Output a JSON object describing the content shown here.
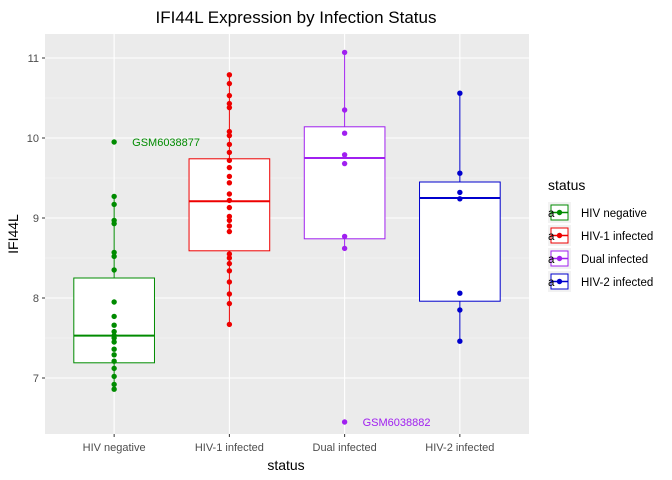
{
  "chart_data": {
    "type": "boxplot",
    "title": "IFI44L Expression by Infection Status",
    "xlabel": "status",
    "ylabel": "IFI44L",
    "ylim": [
      6.3,
      11.3
    ],
    "yticks": [
      7,
      8,
      9,
      10,
      11
    ],
    "categories": [
      "HIV negative",
      "HIV-1 infected",
      "Dual infected",
      "HIV-2 infected"
    ],
    "legend": {
      "title": "status",
      "position": "right",
      "glyph_text": "a"
    },
    "series": [
      {
        "name": "HIV negative",
        "color": "#008B00",
        "box": {
          "q1": 7.19,
          "median": 7.53,
          "q3": 8.25,
          "whisker_low": 6.84,
          "whisker_high": 9.27
        },
        "points": [
          9.95,
          9.27,
          9.17,
          8.97,
          8.93,
          8.57,
          8.52,
          8.35,
          7.95,
          7.77,
          7.66,
          7.58,
          7.53,
          7.5,
          7.45,
          7.36,
          7.29,
          7.21,
          7.12,
          7.02,
          6.92,
          6.86
        ]
      },
      {
        "name": "HIV-1 infected",
        "color": "#EE0000",
        "box": {
          "q1": 8.59,
          "median": 9.21,
          "q3": 9.74,
          "whisker_low": 7.67,
          "whisker_high": 10.79
        },
        "points": [
          10.79,
          10.68,
          10.53,
          10.43,
          10.38,
          10.08,
          10.03,
          9.92,
          9.82,
          9.72,
          9.63,
          9.52,
          9.44,
          9.3,
          9.22,
          9.13,
          9.02,
          8.97,
          8.9,
          8.83,
          8.55,
          8.5,
          8.43,
          8.34,
          8.2,
          8.05,
          7.93,
          7.67
        ]
      },
      {
        "name": "Dual infected",
        "color": "#A020F0",
        "box": {
          "q1": 8.74,
          "median": 9.75,
          "q3": 10.14,
          "whisker_low": 8.62,
          "whisker_high": 11.07
        },
        "points": [
          11.07,
          10.35,
          10.06,
          9.79,
          9.68,
          8.77,
          8.62,
          6.45
        ]
      },
      {
        "name": "HIV-2 infected",
        "color": "#0000CD",
        "box": {
          "q1": 7.96,
          "median": 9.25,
          "q3": 9.45,
          "whisker_low": 7.46,
          "whisker_high": 10.56
        },
        "points": [
          10.56,
          9.56,
          9.32,
          9.24,
          8.06,
          7.85,
          7.46
        ]
      }
    ],
    "annotations": [
      {
        "text": "GSM6038877",
        "category": "HIV negative",
        "y": 9.95,
        "color": "#008B00"
      },
      {
        "text": "GSM6038882",
        "category": "Dual infected",
        "y": 6.45,
        "color": "#A020F0"
      }
    ]
  }
}
